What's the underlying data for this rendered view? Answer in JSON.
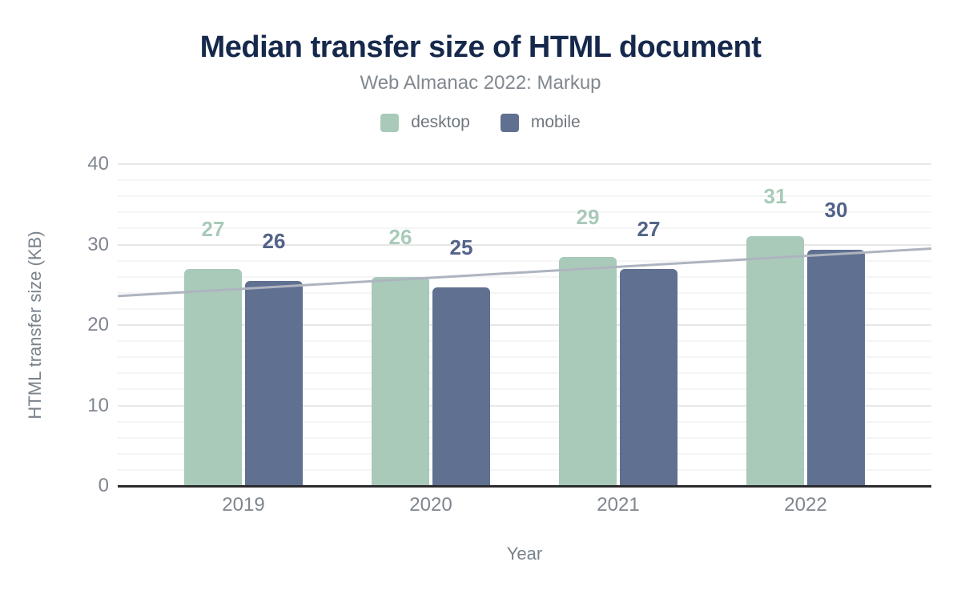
{
  "header": {
    "title": "Median transfer size of HTML document",
    "subtitle": "Web Almanac 2022: Markup"
  },
  "chart_data": {
    "type": "bar",
    "title": "Median transfer size of HTML document",
    "subtitle": "Web Almanac 2022: Markup",
    "categories": [
      "2019",
      "2020",
      "2021",
      "2022"
    ],
    "series": [
      {
        "name": "desktop",
        "color": "#a9cab9",
        "label_color": "#a9cab9",
        "values": [
          27,
          26,
          29,
          31
        ],
        "values_precise": [
          27.0,
          26.0,
          28.5,
          31.0
        ],
        "data_labels": [
          "27",
          "26",
          "29",
          "31"
        ]
      },
      {
        "name": "mobile",
        "color": "#5f7090",
        "label_color": "#536389",
        "values": [
          26,
          25,
          27,
          30
        ],
        "values_precise": [
          25.5,
          24.7,
          27.0,
          29.4
        ],
        "data_labels": [
          "26",
          "25",
          "27",
          "30"
        ]
      }
    ],
    "trendline": {
      "start_value": 23.6,
      "end_value": 29.5,
      "color": "#aeb4bf"
    },
    "xlabel": "Year",
    "ylabel": "HTML transfer size (KB)",
    "ylim": [
      0,
      40
    ],
    "yticks": [
      0,
      10,
      20,
      30,
      40
    ],
    "minor_grid_step": 2,
    "grid": true,
    "legend_position": "top",
    "axis_color": "#2c2c2e",
    "tick_label_color": "#7f868f"
  }
}
